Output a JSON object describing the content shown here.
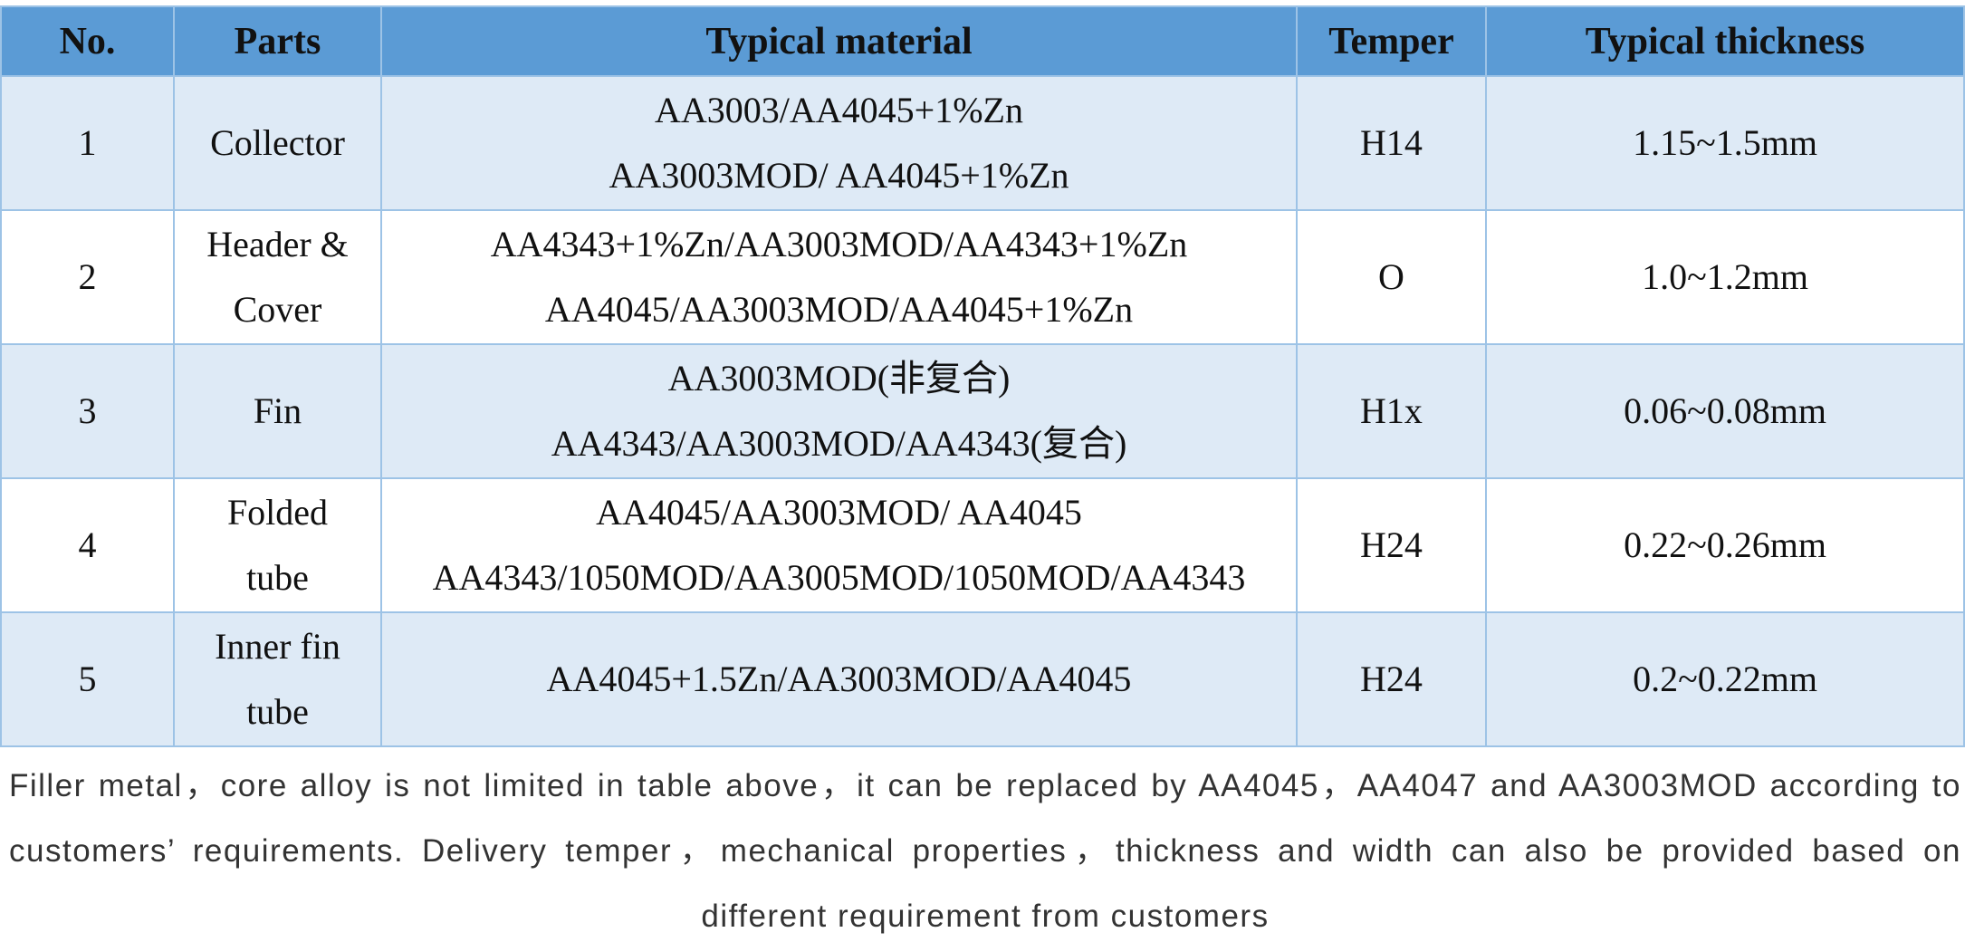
{
  "table": {
    "header": [
      "No.",
      "Parts",
      "Typical material",
      "Temper",
      "Typical thickness"
    ],
    "rows": [
      {
        "no": "1",
        "parts": [
          "Collector"
        ],
        "material": [
          "AA3003/AA4045+1%Zn",
          "AA3003MOD/ AA4045+1%Zn"
        ],
        "temper": "H14",
        "thickness": "1.15~1.5mm"
      },
      {
        "no": "2",
        "parts": [
          "Header &",
          "Cover"
        ],
        "material": [
          "AA4343+1%Zn/AA3003MOD/AA4343+1%Zn",
          "AA4045/AA3003MOD/AA4045+1%Zn"
        ],
        "temper": "O",
        "thickness": "1.0~1.2mm"
      },
      {
        "no": "3",
        "parts": [
          "Fin"
        ],
        "material": [
          "AA3003MOD(非复合)",
          "AA4343/AA3003MOD/AA4343(复合)"
        ],
        "temper": "H1x",
        "thickness": "0.06~0.08mm"
      },
      {
        "no": "4",
        "parts": [
          "Folded",
          "tube"
        ],
        "material": [
          "AA4045/AA3003MOD/ AA4045",
          "AA4343/1050MOD/AA3005MOD/1050MOD/AA4343"
        ],
        "temper": "H24",
        "thickness": "0.22~0.26mm"
      },
      {
        "no": "5",
        "parts": [
          "Inner fin",
          "tube"
        ],
        "material": [
          "AA4045+1.5Zn/AA3003MOD/AA4045"
        ],
        "temper": "H24",
        "thickness": "0.2~0.22mm"
      }
    ]
  },
  "note": "Filler metal，core alloy is not limited in table above，it can be replaced by AA4045，AA4047 and AA3003MOD according to customers’ requirements. Delivery temper，mechanical properties，thickness and width can also be provided based on different requirement from customers"
}
